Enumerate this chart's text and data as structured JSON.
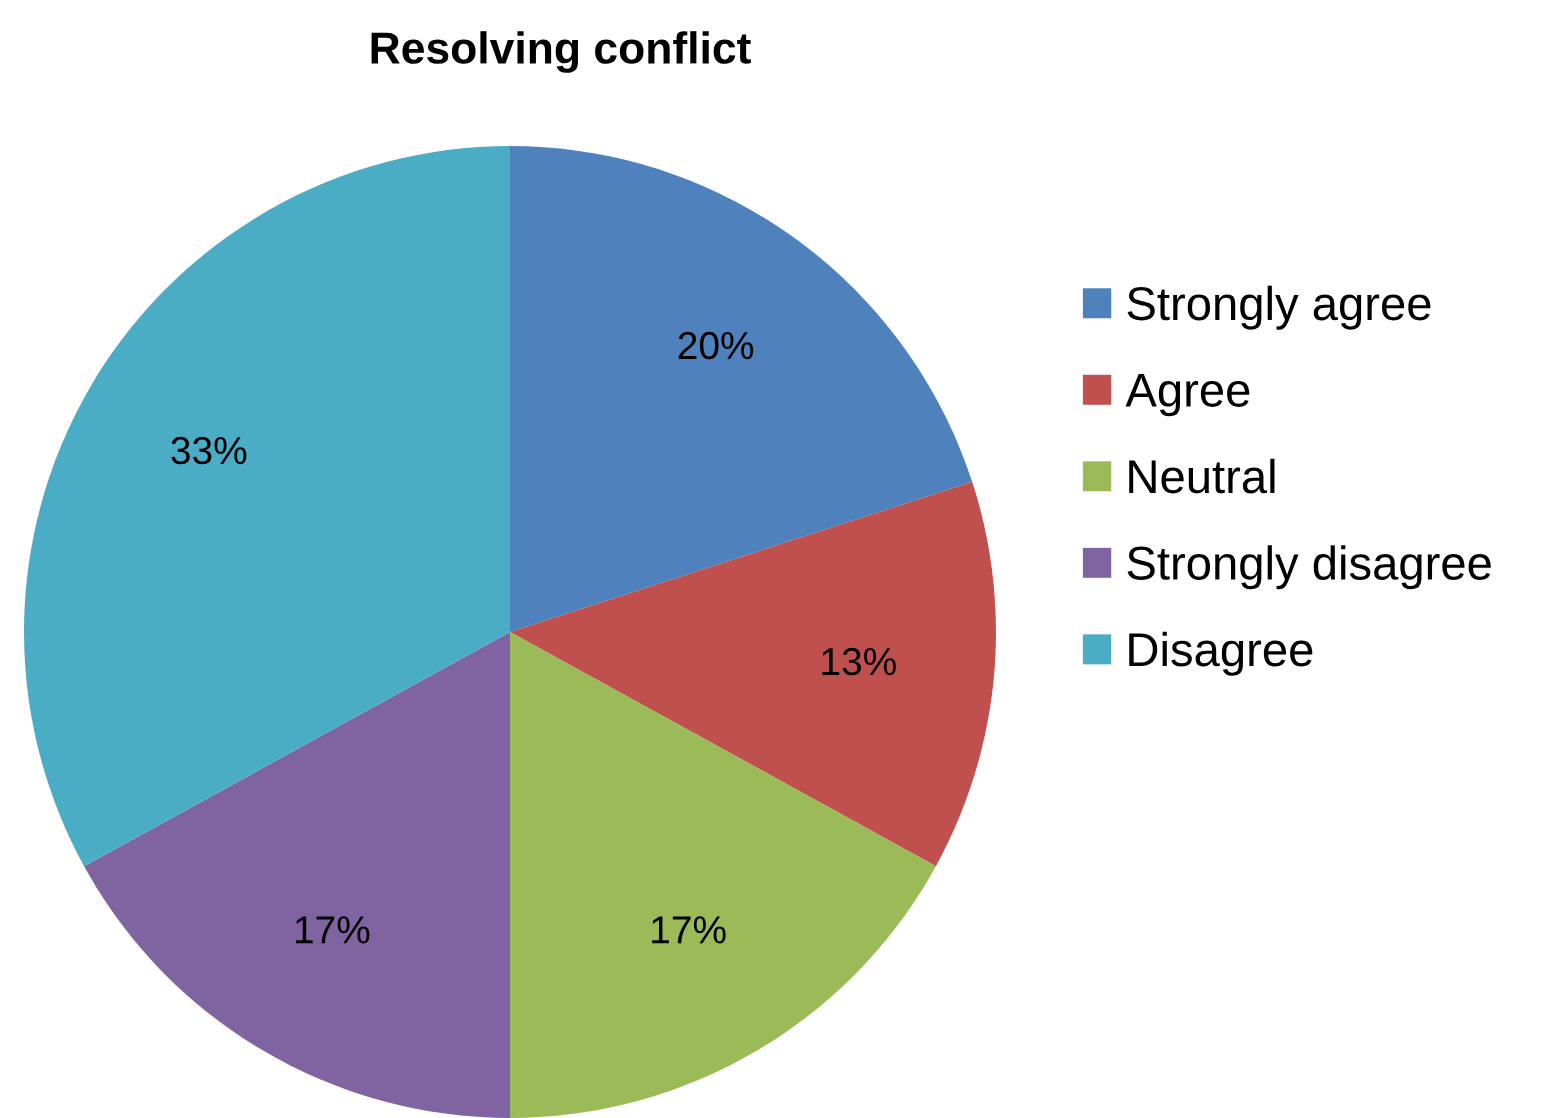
{
  "chart_data": {
    "type": "pie",
    "title": "Resolving conflict",
    "categories": [
      "Strongly agree",
      "Agree",
      "Neutral",
      "Strongly disagree",
      "Disagree"
    ],
    "values": [
      20,
      13,
      17,
      17,
      33
    ],
    "colors": [
      "#4f81bd",
      "#c0504d",
      "#9bbb59",
      "#8064a2",
      "#4bacc6"
    ],
    "value_labels": [
      "20%",
      "13%",
      "17%",
      "17%",
      "33%"
    ],
    "legend": "right"
  }
}
